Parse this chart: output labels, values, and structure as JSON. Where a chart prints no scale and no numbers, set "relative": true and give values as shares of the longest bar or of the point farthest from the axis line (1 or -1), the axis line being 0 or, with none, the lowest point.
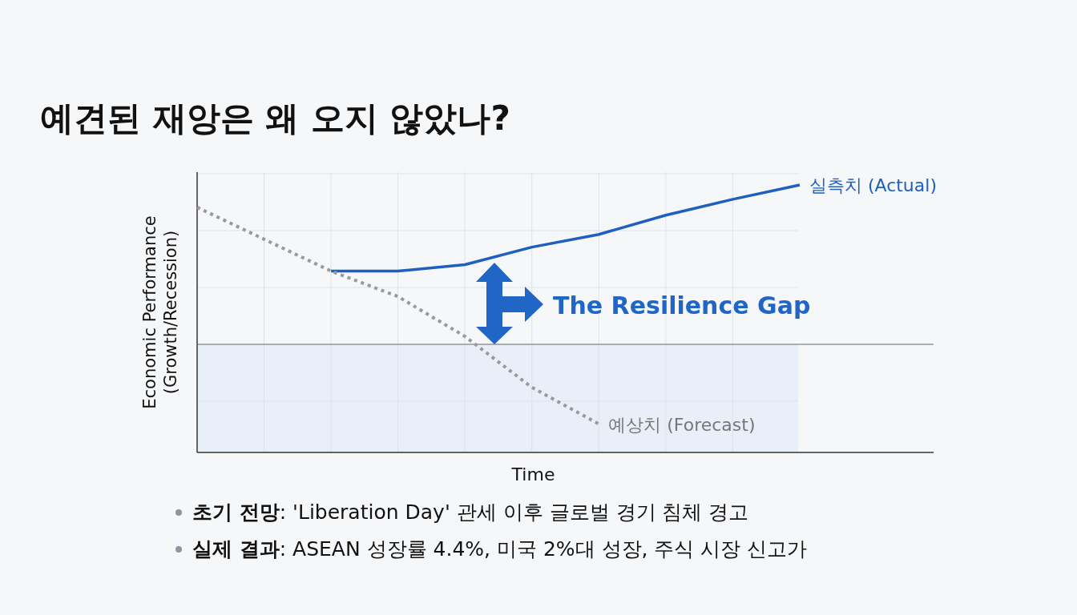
{
  "chart_data": {
    "type": "line",
    "title": "예견된 재앙은 왜 오지 않았나?",
    "xlabel": "Time",
    "ylabel": "Economic Performance (Growth/Recession)",
    "relative": true,
    "marker": "none",
    "grid": true,
    "categories": [
      null,
      null,
      null,
      null,
      null,
      null,
      null,
      null,
      null,
      null,
      null,
      null
    ],
    "series": [
      {
        "name": "실측치 (Actual)",
        "color": "#1f5fbf",
        "line_style": "solid",
        "values": [
          null,
          null,
          0.46,
          0.46,
          0.5,
          0.61,
          0.69,
          0.81,
          0.91,
          1,
          null,
          null
        ]
      },
      {
        "name": "예상치 (Forecast)",
        "color": "#999999",
        "line_style": "dotted",
        "values": [
          0.86,
          0.66,
          0.46,
          0.3,
          0.05,
          -0.27,
          -0.5,
          null,
          null,
          null,
          null,
          null
        ]
      }
    ],
    "annotations": [
      "The Resilience Gap",
      "**초기 전망**: 'Liberation Day' 관세 이후 글로벌 경기 침체 경고",
      "**실제 결과**: ASEAN 성장률 4.4%, 미국 2%대 성장, 주식 시장 신고가"
    ]
  }
}
